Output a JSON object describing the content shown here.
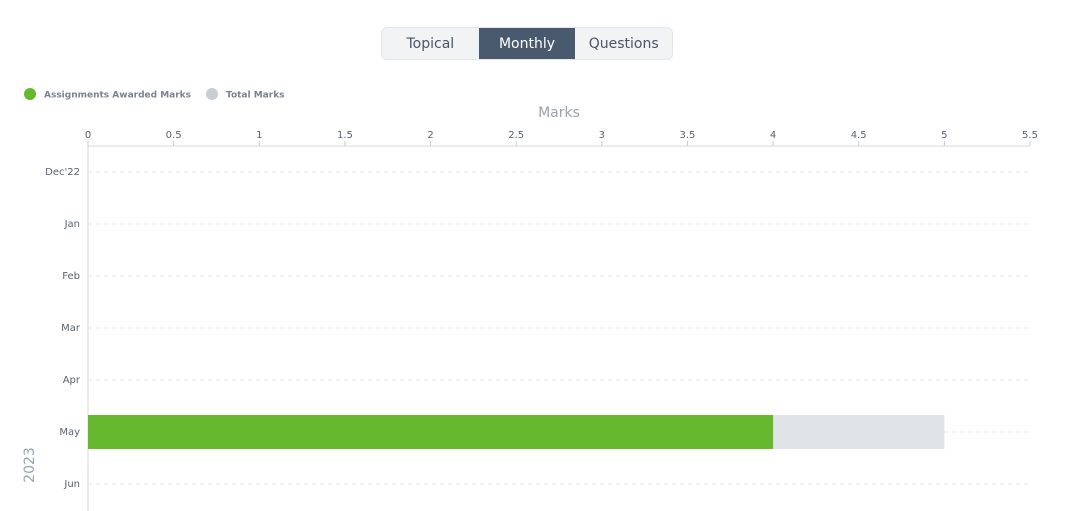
{
  "tabs": [
    {
      "label": "Topical",
      "active": false
    },
    {
      "label": "Monthly",
      "active": true
    },
    {
      "label": "Questions",
      "active": false
    }
  ],
  "chart_data": {
    "type": "hbar-overlap",
    "x_label": "Marks",
    "y_label": "2023",
    "categories": [
      "Dec'22",
      "Jan",
      "Feb",
      "Mar",
      "Apr",
      "May",
      "Jun"
    ],
    "series": [
      {
        "name": "Total Marks",
        "color": "#e1e4e7",
        "legend_color": "#c8cdd4",
        "values": [
          null,
          null,
          null,
          null,
          null,
          5,
          null
        ]
      },
      {
        "name": "Assignments Awarded Marks",
        "color": "#66b82f",
        "legend_color": "#66b82f",
        "values": [
          null,
          null,
          null,
          null,
          null,
          4,
          null
        ]
      }
    ],
    "legend_order": [
      1,
      0
    ],
    "xlim": [
      0,
      5.5
    ],
    "xticks": [
      0,
      0.5,
      1,
      1.5,
      2,
      2.5,
      3,
      3.5,
      4,
      4.5,
      5,
      5.5
    ],
    "grid": true
  }
}
